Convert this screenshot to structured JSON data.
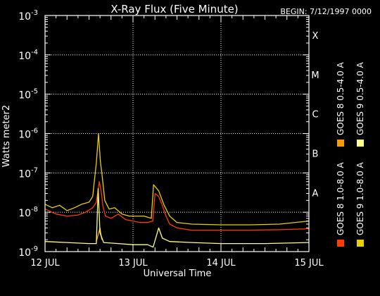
{
  "chart_data": {
    "type": "line",
    "title": "X-Ray Flux (Five Minute)",
    "subtitle": "BEGIN: 7/12/1997 0000",
    "xlabel": "Universal Time",
    "ylabel": "Watts meter2",
    "x_unit": "hours since 7/12/1997 0000",
    "xlim": [
      0,
      72
    ],
    "ylim": [
      1e-09,
      0.001
    ],
    "y_scale": "log",
    "x_ticks": [
      {
        "value": 0,
        "label": "12 JUL"
      },
      {
        "value": 24,
        "label": "13 JUL"
      },
      {
        "value": 48,
        "label": "14 JUL"
      },
      {
        "value": 72,
        "label": "15 JUL"
      }
    ],
    "y_ticks": [
      {
        "exp": -9,
        "base": "10",
        "sup": "-9"
      },
      {
        "exp": -8,
        "base": "10",
        "sup": "-8"
      },
      {
        "exp": -7,
        "base": "10",
        "sup": "-7"
      },
      {
        "exp": -6,
        "base": "10",
        "sup": "-6"
      },
      {
        "exp": -5,
        "base": "10",
        "sup": "-5"
      },
      {
        "exp": -4,
        "base": "10",
        "sup": "-4"
      },
      {
        "exp": -3,
        "base": "10",
        "sup": "-3"
      }
    ],
    "flare_classes": [
      {
        "label": "A",
        "exp": -8
      },
      {
        "label": "B",
        "exp": -7
      },
      {
        "label": "C",
        "exp": -6
      },
      {
        "label": "M",
        "exp": -5
      },
      {
        "label": "X",
        "exp": -4
      }
    ],
    "grid": true,
    "legend_position": "right",
    "series": [
      {
        "name": "GOES 8 1.0-8.0 A",
        "color": "#ff3c00",
        "points": [
          [
            0,
            1.2e-08
          ],
          [
            3,
            9e-09
          ],
          [
            6,
            8e-09
          ],
          [
            9,
            8.5e-09
          ],
          [
            11,
            1e-08
          ],
          [
            13,
            1.3e-08
          ],
          [
            14,
            1.8e-08
          ],
          [
            14.8,
            6e-08
          ],
          [
            15.3,
            3.5e-08
          ],
          [
            15.8,
            1.4e-08
          ],
          [
            16.5,
            8e-09
          ],
          [
            18,
            7e-09
          ],
          [
            20,
            9e-09
          ],
          [
            22,
            6.5e-09
          ],
          [
            24,
            6e-09
          ],
          [
            26,
            5.5e-09
          ],
          [
            28,
            5.5e-09
          ],
          [
            29.4,
            6e-09
          ],
          [
            30,
            3e-08
          ],
          [
            31,
            2.5e-08
          ],
          [
            32,
            1.5e-08
          ],
          [
            33,
            8e-09
          ],
          [
            34,
            5e-09
          ],
          [
            36,
            4e-09
          ],
          [
            40,
            3.5e-09
          ],
          [
            48,
            3.5e-09
          ],
          [
            56,
            3.5e-09
          ],
          [
            64,
            3.6e-09
          ],
          [
            72,
            3.8e-09
          ]
        ]
      },
      {
        "name": "GOES 8 0.5-4.0 A",
        "color": "#ff9900",
        "points": [
          [
            14,
            1.8e-09
          ],
          [
            15,
            4e-09
          ],
          [
            15.5,
            2e-09
          ]
        ]
      },
      {
        "name": "GOES 9 1.0-8.0 A",
        "color": "#e8d000",
        "points": [
          [
            0,
            1.6e-08
          ],
          [
            2,
            1.3e-08
          ],
          [
            4,
            1.5e-08
          ],
          [
            6,
            1.1e-08
          ],
          [
            8,
            1.3e-08
          ],
          [
            10,
            1.6e-08
          ],
          [
            12,
            1.8e-08
          ],
          [
            13,
            2.5e-08
          ],
          [
            14,
            1.8e-07
          ],
          [
            14.6,
            1e-06
          ],
          [
            15.1,
            2e-07
          ],
          [
            15.6,
            8e-08
          ],
          [
            16.3,
            2e-08
          ],
          [
            17.5,
            1.2e-08
          ],
          [
            19,
            1.3e-08
          ],
          [
            21,
            9e-09
          ],
          [
            23,
            8e-09
          ],
          [
            25,
            8e-09
          ],
          [
            27,
            8e-09
          ],
          [
            29,
            7e-09
          ],
          [
            29.6,
            5e-08
          ],
          [
            31,
            3.5e-08
          ],
          [
            32.5,
            1.5e-08
          ],
          [
            34,
            8e-09
          ],
          [
            36,
            5.5e-09
          ],
          [
            40,
            5e-09
          ],
          [
            48,
            4.8e-09
          ],
          [
            56,
            4.8e-09
          ],
          [
            64,
            5e-09
          ],
          [
            72,
            6e-09
          ]
        ]
      },
      {
        "name": "GOES 9 0.5-4.0 A",
        "color": "#ffff88",
        "points": [
          [
            0,
            1.8e-09
          ],
          [
            6,
            1.7e-09
          ],
          [
            12,
            1.6e-09
          ],
          [
            14,
            1.6e-09
          ],
          [
            14.5,
            4e-08
          ],
          [
            15,
            3e-09
          ],
          [
            16,
            1.7e-09
          ],
          [
            20,
            1.6e-09
          ],
          [
            24,
            1.5e-09
          ],
          [
            28,
            1.5e-09
          ],
          [
            29.5,
            1.3e-09
          ],
          [
            31,
            4e-09
          ],
          [
            32,
            2.2e-09
          ],
          [
            34,
            1.8e-09
          ],
          [
            40,
            1.7e-09
          ],
          [
            48,
            1.6e-09
          ],
          [
            60,
            1.6e-09
          ],
          [
            72,
            1.7e-09
          ]
        ]
      }
    ]
  }
}
